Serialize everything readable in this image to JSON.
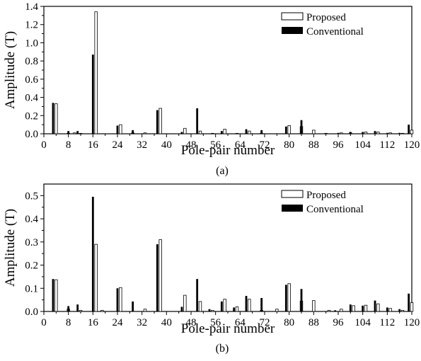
{
  "chart_data": [
    {
      "type": "bar",
      "caption": "(a)",
      "xlabel": "Pole-pair number",
      "ylabel": "Amplitude (T)",
      "xlim": [
        0,
        120
      ],
      "ylim": [
        0,
        1.4
      ],
      "xticks": [
        "0",
        "8",
        "16",
        "24",
        "32",
        "40",
        "48",
        "56",
        "64",
        "72",
        "80",
        "88",
        "96",
        "104",
        "112",
        "120"
      ],
      "yticks": [
        "0.0",
        "0.2",
        "0.4",
        "0.6",
        "0.8",
        "1.0",
        "1.2",
        "1.4"
      ],
      "legend_position": "top-right",
      "series": [
        {
          "name": "Proposed",
          "style": "hollow",
          "points": [
            [
              4,
              0.33
            ],
            [
              8,
              0.005
            ],
            [
              10,
              0.01
            ],
            [
              12,
              0.005
            ],
            [
              17,
              1.34
            ],
            [
              25,
              0.1
            ],
            [
              29,
              0.01
            ],
            [
              33,
              0.01
            ],
            [
              38,
              0.28
            ],
            [
              46,
              0.06
            ],
            [
              51,
              0.03
            ],
            [
              55,
              0.005
            ],
            [
              59,
              0.05
            ],
            [
              63,
              0.005
            ],
            [
              67,
              0.03
            ],
            [
              71,
              0.005
            ],
            [
              80,
              0.09
            ],
            [
              84,
              0.08
            ],
            [
              88,
              0.04
            ],
            [
              92,
              0.005
            ],
            [
              97,
              0.01
            ],
            [
              100,
              0.01
            ],
            [
              105,
              0.02
            ],
            [
              109,
              0.02
            ],
            [
              113,
              0.01
            ],
            [
              117,
              0.005
            ],
            [
              120,
              0.04
            ]
          ]
        },
        {
          "name": "Conventional",
          "style": "solid",
          "points": [
            [
              3,
              0.34
            ],
            [
              8,
              0.03
            ],
            [
              11,
              0.03
            ],
            [
              16,
              0.87
            ],
            [
              24,
              0.09
            ],
            [
              29,
              0.04
            ],
            [
              37,
              0.26
            ],
            [
              45,
              0.02
            ],
            [
              50,
              0.28
            ],
            [
              58,
              0.03
            ],
            [
              66,
              0.05
            ],
            [
              71,
              0.04
            ],
            [
              79,
              0.08
            ],
            [
              84,
              0.15
            ],
            [
              96,
              0.01
            ],
            [
              100,
              0.02
            ],
            [
              104,
              0.02
            ],
            [
              108,
              0.03
            ],
            [
              112,
              0.01
            ],
            [
              116,
              0.01
            ],
            [
              119,
              0.1
            ]
          ]
        }
      ]
    },
    {
      "type": "bar",
      "caption": "(b)",
      "xlabel": "Pole-pair number",
      "ylabel": "Amplitude (T)",
      "xlim": [
        0,
        120
      ],
      "ylim": [
        0,
        0.55
      ],
      "xticks": [
        "0",
        "8",
        "16",
        "24",
        "32",
        "40",
        "48",
        "56",
        "64",
        "72",
        "80",
        "88",
        "96",
        "104",
        "112",
        "120"
      ],
      "yticks": [
        "0.0",
        "0.1",
        "0.2",
        "0.3",
        "0.4",
        "0.5"
      ],
      "legend_position": "top-right",
      "series": [
        {
          "name": "Proposed",
          "style": "hollow",
          "points": [
            [
              4,
              0.137
            ],
            [
              8,
              0.01
            ],
            [
              12,
              0.005
            ],
            [
              17,
              0.29
            ],
            [
              19,
              0.005
            ],
            [
              25,
              0.103
            ],
            [
              33,
              0.01
            ],
            [
              38,
              0.31
            ],
            [
              46,
              0.07
            ],
            [
              51,
              0.043
            ],
            [
              55,
              0.005
            ],
            [
              59,
              0.053
            ],
            [
              63,
              0.02
            ],
            [
              67,
              0.053
            ],
            [
              71,
              0.005
            ],
            [
              76,
              0.01
            ],
            [
              80,
              0.12
            ],
            [
              84,
              0.045
            ],
            [
              88,
              0.047
            ],
            [
              93,
              0.005
            ],
            [
              97,
              0.01
            ],
            [
              101,
              0.025
            ],
            [
              105,
              0.027
            ],
            [
              109,
              0.033
            ],
            [
              113,
              0.013
            ],
            [
              117,
              0.005
            ],
            [
              120,
              0.038
            ]
          ]
        },
        {
          "name": "Conventional",
          "style": "solid",
          "points": [
            [
              3,
              0.14
            ],
            [
              8,
              0.023
            ],
            [
              11,
              0.03
            ],
            [
              16,
              0.495
            ],
            [
              24,
              0.1
            ],
            [
              29,
              0.043
            ],
            [
              37,
              0.29
            ],
            [
              45,
              0.02
            ],
            [
              50,
              0.14
            ],
            [
              54,
              0.01
            ],
            [
              58,
              0.043
            ],
            [
              62,
              0.017
            ],
            [
              66,
              0.067
            ],
            [
              71,
              0.058
            ],
            [
              79,
              0.115
            ],
            [
              84,
              0.097
            ],
            [
              95,
              0.005
            ],
            [
              100,
              0.03
            ],
            [
              104,
              0.025
            ],
            [
              108,
              0.047
            ],
            [
              112,
              0.017
            ],
            [
              116,
              0.01
            ],
            [
              119,
              0.077
            ]
          ]
        }
      ]
    }
  ]
}
